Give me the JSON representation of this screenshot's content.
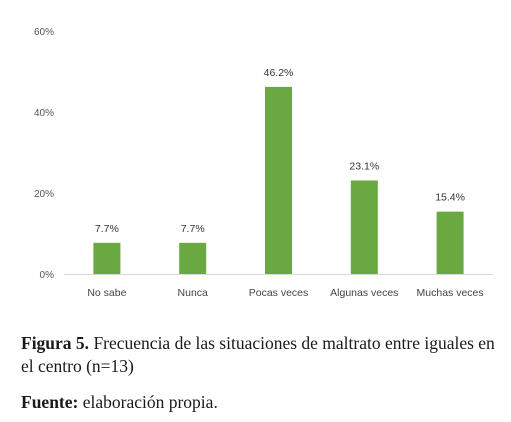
{
  "chart_data": {
    "type": "bar",
    "categories": [
      "No sabe",
      "Nunca",
      "Pocas veces",
      "Algunas veces",
      "Muchas veces"
    ],
    "values": [
      7.7,
      7.7,
      46.2,
      23.1,
      15.4
    ],
    "data_labels": [
      "7.7%",
      "7.7%",
      "46.2%",
      "23.1%",
      "15.4%"
    ],
    "ylim": [
      0,
      60
    ],
    "yticks": [
      0,
      20,
      40,
      60
    ],
    "ytick_labels": [
      "0%",
      "20%",
      "40%",
      "60%"
    ],
    "grid": false,
    "bar_color": "#6aa842"
  },
  "caption": {
    "figure_label": "Figura 5.",
    "figure_text": "Frecuencia de las situaciones de maltrato entre iguales en el centro (n=13)",
    "source_label": "Fuente:",
    "source_text": "elaboración propia."
  }
}
